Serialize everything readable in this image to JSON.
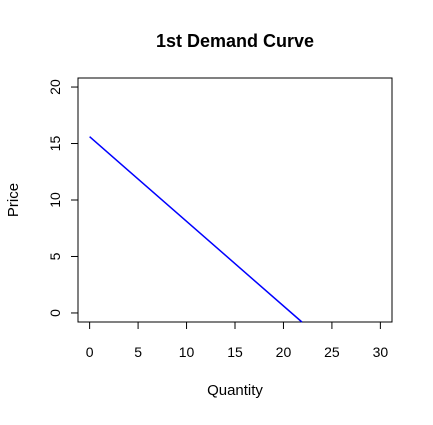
{
  "chart_data": {
    "type": "line",
    "title": "1st Demand Curve",
    "xlabel": "Quantity",
    "ylabel": "Price",
    "xlim": [
      -1.2,
      31.2
    ],
    "ylim": [
      -0.8,
      20.8
    ],
    "x_ticks": [
      0,
      5,
      10,
      15,
      20,
      25,
      30
    ],
    "y_ticks": [
      0,
      5,
      10,
      15,
      20
    ],
    "grid": false,
    "series": [
      {
        "color": "#0000ff",
        "points": [
          [
            0,
            15.6
          ],
          [
            21.9,
            -0.8
          ]
        ]
      }
    ]
  }
}
